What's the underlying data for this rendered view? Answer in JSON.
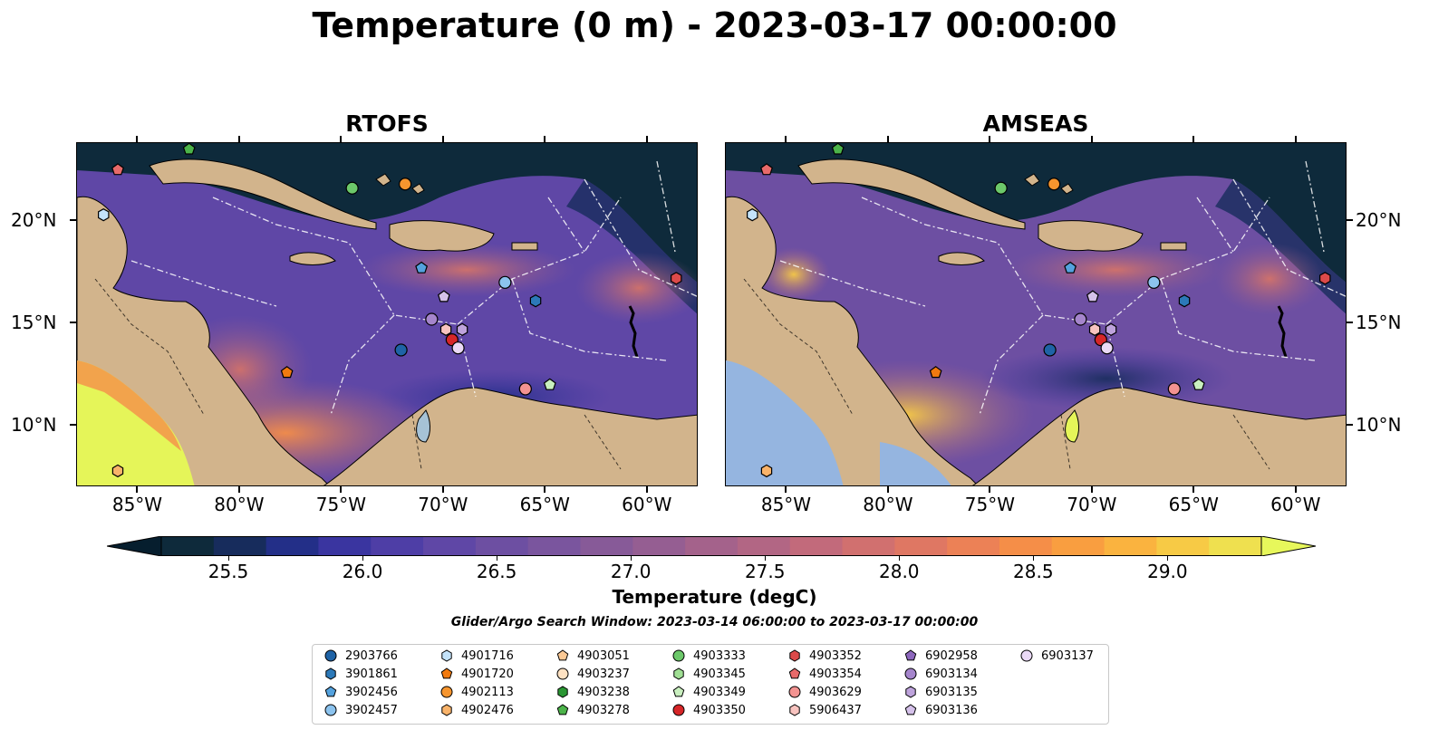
{
  "title": "Temperature (0 m) - 2023-03-17 00:00:00",
  "panels": [
    {
      "title": "RTOFS"
    },
    {
      "title": "AMSEAS"
    }
  ],
  "axes": {
    "lon_ticks": [
      "85°W",
      "80°W",
      "75°W",
      "70°W",
      "65°W",
      "60°W"
    ],
    "lat_ticks": [
      "20°N",
      "15°N",
      "10°N"
    ]
  },
  "colorbar": {
    "ticks": [
      "25.5",
      "26.0",
      "26.5",
      "27.0",
      "27.5",
      "28.0",
      "28.5",
      "29.0"
    ],
    "label": "Temperature (degC)",
    "colors": [
      "#0e2a3b",
      "#172c5c",
      "#232f88",
      "#3a35a0",
      "#4e3ea6",
      "#5f47a6",
      "#6d4fa2",
      "#7a559e",
      "#875a98",
      "#955e92",
      "#a4628b",
      "#b26684",
      "#c26a7b",
      "#d1706f",
      "#df7763",
      "#ec8156",
      "#f58e48",
      "#f99e40",
      "#fab33f",
      "#f7ca45",
      "#efe04f"
    ],
    "under_color": "#061e2e",
    "over_color": "#e7f75b"
  },
  "search_window": "Glider/Argo Search Window: 2023-03-14 06:00:00 to 2023-03-17 00:00:00",
  "colors": {
    "land": "#d2b48c",
    "lake": "#a6c2d6",
    "warm_land_pocket": "#e5f559",
    "amseas_missing": "#95b5e0"
  },
  "legend": [
    {
      "id": "2903766",
      "marker": "circle",
      "color": "#1f63a6"
    },
    {
      "id": "3901861",
      "marker": "hexagon",
      "color": "#2c79b8"
    },
    {
      "id": "3902456",
      "marker": "pentagon",
      "color": "#54a2de"
    },
    {
      "id": "3902457",
      "marker": "circle",
      "color": "#8cc3ee"
    },
    {
      "id": "4901716",
      "marker": "hexagon",
      "color": "#c4e3fa"
    },
    {
      "id": "4901720",
      "marker": "pentagon",
      "color": "#f17a0f"
    },
    {
      "id": "4902113",
      "marker": "circle",
      "color": "#f6952e"
    },
    {
      "id": "4902476",
      "marker": "hexagon",
      "color": "#f9b36a"
    },
    {
      "id": "4903051",
      "marker": "pentagon",
      "color": "#fbc995"
    },
    {
      "id": "4903237",
      "marker": "circle",
      "color": "#fde1c2"
    },
    {
      "id": "4903238",
      "marker": "hexagon",
      "color": "#2a9633"
    },
    {
      "id": "4903278",
      "marker": "pentagon",
      "color": "#4cb44a"
    },
    {
      "id": "4903333",
      "marker": "circle",
      "color": "#6cc86a"
    },
    {
      "id": "4903345",
      "marker": "hexagon",
      "color": "#a0df94"
    },
    {
      "id": "4903349",
      "marker": "pentagon",
      "color": "#c9efbf"
    },
    {
      "id": "4903350",
      "marker": "circle",
      "color": "#d62628"
    },
    {
      "id": "4903352",
      "marker": "hexagon",
      "color": "#dc4a4a"
    },
    {
      "id": "4903354",
      "marker": "pentagon",
      "color": "#e86a6a"
    },
    {
      "id": "4903629",
      "marker": "circle",
      "color": "#f39391"
    },
    {
      "id": "5906437",
      "marker": "hexagon",
      "color": "#f8c3bf"
    },
    {
      "id": "6902958",
      "marker": "pentagon",
      "color": "#8d67bd"
    },
    {
      "id": "6903134",
      "marker": "circle",
      "color": "#a585cc"
    },
    {
      "id": "6903135",
      "marker": "hexagon",
      "color": "#bea3dc"
    },
    {
      "id": "6903136",
      "marker": "pentagon",
      "color": "#d5c1ea"
    },
    {
      "id": "6903137",
      "marker": "circle",
      "color": "#ead9f5"
    }
  ],
  "floats": [
    {
      "id": "4903278",
      "lon": -82.5,
      "lat": 23.5
    },
    {
      "id": "4903354",
      "lon": -86.0,
      "lat": 22.5
    },
    {
      "id": "4901716",
      "lon": -86.7,
      "lat": 20.3
    },
    {
      "id": "4903333",
      "lon": -74.5,
      "lat": 21.6
    },
    {
      "id": "4902113",
      "lon": -71.9,
      "lat": 21.8
    },
    {
      "id": "3902456",
      "lon": -71.1,
      "lat": 17.7
    },
    {
      "id": "3902457",
      "lon": -67.0,
      "lat": 17.0
    },
    {
      "id": "3901861",
      "lon": -65.5,
      "lat": 16.1
    },
    {
      "id": "4903352",
      "lon": -58.6,
      "lat": 17.2
    },
    {
      "id": "6903136",
      "lon": -70.0,
      "lat": 16.3
    },
    {
      "id": "6903134",
      "lon": -70.6,
      "lat": 15.2
    },
    {
      "id": "5906437",
      "lon": -69.9,
      "lat": 14.7
    },
    {
      "id": "6903135",
      "lon": -69.1,
      "lat": 14.7
    },
    {
      "id": "4903350",
      "lon": -69.6,
      "lat": 14.2
    },
    {
      "id": "6903137",
      "lon": -69.3,
      "lat": 13.8
    },
    {
      "id": "2903766",
      "lon": -72.1,
      "lat": 13.7
    },
    {
      "id": "4901720",
      "lon": -77.7,
      "lat": 12.6
    },
    {
      "id": "4903629",
      "lon": -66.0,
      "lat": 11.8
    },
    {
      "id": "4903349",
      "lon": -64.8,
      "lat": 12.0
    },
    {
      "id": "4902476",
      "lon": -86.0,
      "lat": 7.8
    }
  ]
}
